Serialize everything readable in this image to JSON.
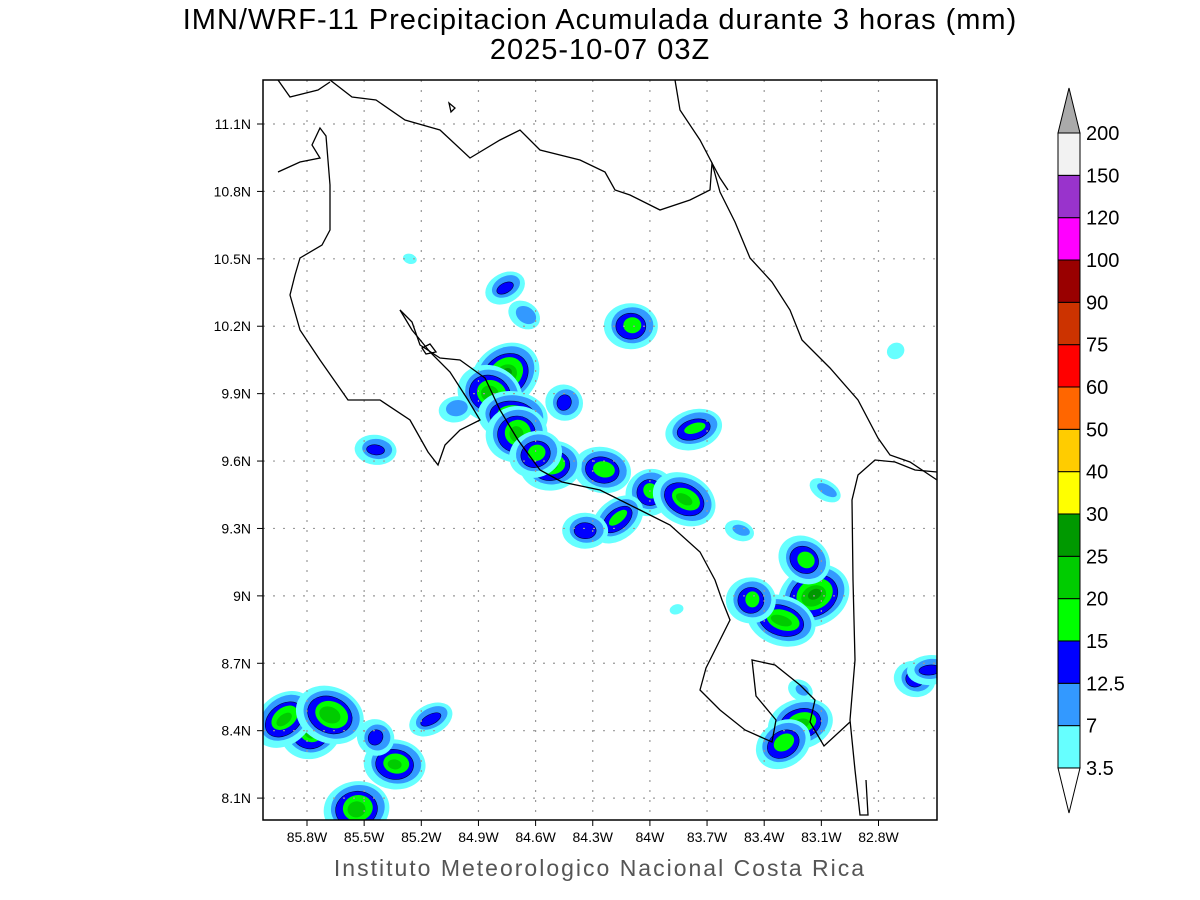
{
  "title": "IMN/WRF-11 Precipitacion Acumulada durante 3 horas (mm)",
  "subtitle": "2025-10-07 03Z",
  "footer": "Instituto Meteorologico Nacional Costa Rica",
  "map": {
    "lon_range": [
      -86.03,
      -82.49
    ],
    "lat_range": [
      8.0,
      11.3
    ],
    "lon_ticks": [
      {
        "value": -85.8,
        "label": "85.8W"
      },
      {
        "value": -85.5,
        "label": "85.5W"
      },
      {
        "value": -85.2,
        "label": "85.2W"
      },
      {
        "value": -84.9,
        "label": "84.9W"
      },
      {
        "value": -84.6,
        "label": "84.6W"
      },
      {
        "value": -84.3,
        "label": "84.3W"
      },
      {
        "value": -84.0,
        "label": "84W"
      },
      {
        "value": -83.7,
        "label": "83.7W"
      },
      {
        "value": -83.4,
        "label": "83.4W"
      },
      {
        "value": -83.1,
        "label": "83.1W"
      },
      {
        "value": -82.8,
        "label": "82.8W"
      }
    ],
    "lat_ticks": [
      {
        "value": 8.1,
        "label": "8.1N"
      },
      {
        "value": 8.4,
        "label": "8.4N"
      },
      {
        "value": 8.7,
        "label": "8.7N"
      },
      {
        "value": 9.0,
        "label": "9N"
      },
      {
        "value": 9.3,
        "label": "9.3N"
      },
      {
        "value": 9.6,
        "label": "9.6N"
      },
      {
        "value": 9.9,
        "label": "9.9N"
      },
      {
        "value": 10.2,
        "label": "10.2N"
      },
      {
        "value": 10.5,
        "label": "10.5N"
      },
      {
        "value": 10.8,
        "label": "10.8N"
      },
      {
        "value": 11.1,
        "label": "11.1N"
      }
    ],
    "precip_cells": [
      {
        "lon": -84.76,
        "lat": 9.98,
        "max_mm": 25
      },
      {
        "lon": -84.84,
        "lat": 9.9,
        "max_mm": 20
      },
      {
        "lon": -84.72,
        "lat": 9.8,
        "max_mm": 20
      },
      {
        "lon": -84.7,
        "lat": 9.72,
        "max_mm": 20
      },
      {
        "lon": -84.76,
        "lat": 10.37,
        "max_mm": 12.5
      },
      {
        "lon": -84.66,
        "lat": 10.25,
        "max_mm": 7
      },
      {
        "lon": -85.26,
        "lat": 10.5,
        "max_mm": 3.5
      },
      {
        "lon": -84.1,
        "lat": 10.2,
        "max_mm": 15
      },
      {
        "lon": -83.77,
        "lat": 9.74,
        "max_mm": 15
      },
      {
        "lon": -84.0,
        "lat": 9.46,
        "max_mm": 15
      },
      {
        "lon": -83.82,
        "lat": 9.43,
        "max_mm": 20
      },
      {
        "lon": -84.25,
        "lat": 9.56,
        "max_mm": 15
      },
      {
        "lon": -84.52,
        "lat": 9.58,
        "max_mm": 20
      },
      {
        "lon": -84.6,
        "lat": 9.63,
        "max_mm": 15
      },
      {
        "lon": -84.17,
        "lat": 9.34,
        "max_mm": 15
      },
      {
        "lon": -84.45,
        "lat": 9.86,
        "max_mm": 12.5
      },
      {
        "lon": -85.44,
        "lat": 9.65,
        "max_mm": 12.5
      },
      {
        "lon": -85.02,
        "lat": 9.83,
        "max_mm": 7
      },
      {
        "lon": -83.14,
        "lat": 9.0,
        "max_mm": 25
      },
      {
        "lon": -83.19,
        "lat": 9.16,
        "max_mm": 15
      },
      {
        "lon": -83.31,
        "lat": 8.89,
        "max_mm": 20
      },
      {
        "lon": -83.47,
        "lat": 8.98,
        "max_mm": 15
      },
      {
        "lon": -83.21,
        "lat": 8.43,
        "max_mm": 20
      },
      {
        "lon": -83.3,
        "lat": 8.34,
        "max_mm": 15
      },
      {
        "lon": -83.21,
        "lat": 8.58,
        "max_mm": 7
      },
      {
        "lon": -82.61,
        "lat": 8.63,
        "max_mm": 12.5
      },
      {
        "lon": -82.53,
        "lat": 8.67,
        "max_mm": 12.5
      },
      {
        "lon": -85.78,
        "lat": 8.4,
        "max_mm": 20
      },
      {
        "lon": -85.92,
        "lat": 8.45,
        "max_mm": 20
      },
      {
        "lon": -85.68,
        "lat": 8.47,
        "max_mm": 20
      },
      {
        "lon": -85.34,
        "lat": 8.25,
        "max_mm": 20
      },
      {
        "lon": -85.54,
        "lat": 8.05,
        "max_mm": 20
      },
      {
        "lon": -85.15,
        "lat": 8.45,
        "max_mm": 12.5
      },
      {
        "lon": -85.44,
        "lat": 8.37,
        "max_mm": 12.5
      },
      {
        "lon": -83.53,
        "lat": 9.29,
        "max_mm": 7
      },
      {
        "lon": -84.34,
        "lat": 9.29,
        "max_mm": 12.5
      },
      {
        "lon": -83.86,
        "lat": 8.94,
        "max_mm": 3.5
      },
      {
        "lon": -82.71,
        "lat": 10.09,
        "max_mm": 3.5
      },
      {
        "lon": -83.08,
        "lat": 9.47,
        "max_mm": 7
      }
    ]
  },
  "colorbar": {
    "labels": [
      "3.5",
      "7",
      "12.5",
      "15",
      "20",
      "25",
      "30",
      "40",
      "50",
      "60",
      "75",
      "90",
      "100",
      "120",
      "150",
      "200"
    ],
    "colors": [
      "#66ffff",
      "#3399ff",
      "#0000ff",
      "#00ff00",
      "#00cc00",
      "#009900",
      "#ffff00",
      "#ffcc00",
      "#ff6600",
      "#ff0000",
      "#cc3300",
      "#990000",
      "#ff00ff",
      "#9933cc",
      "#f2f2f2"
    ],
    "over_color": "#aaaaaa",
    "under_color": "#ffffff"
  }
}
